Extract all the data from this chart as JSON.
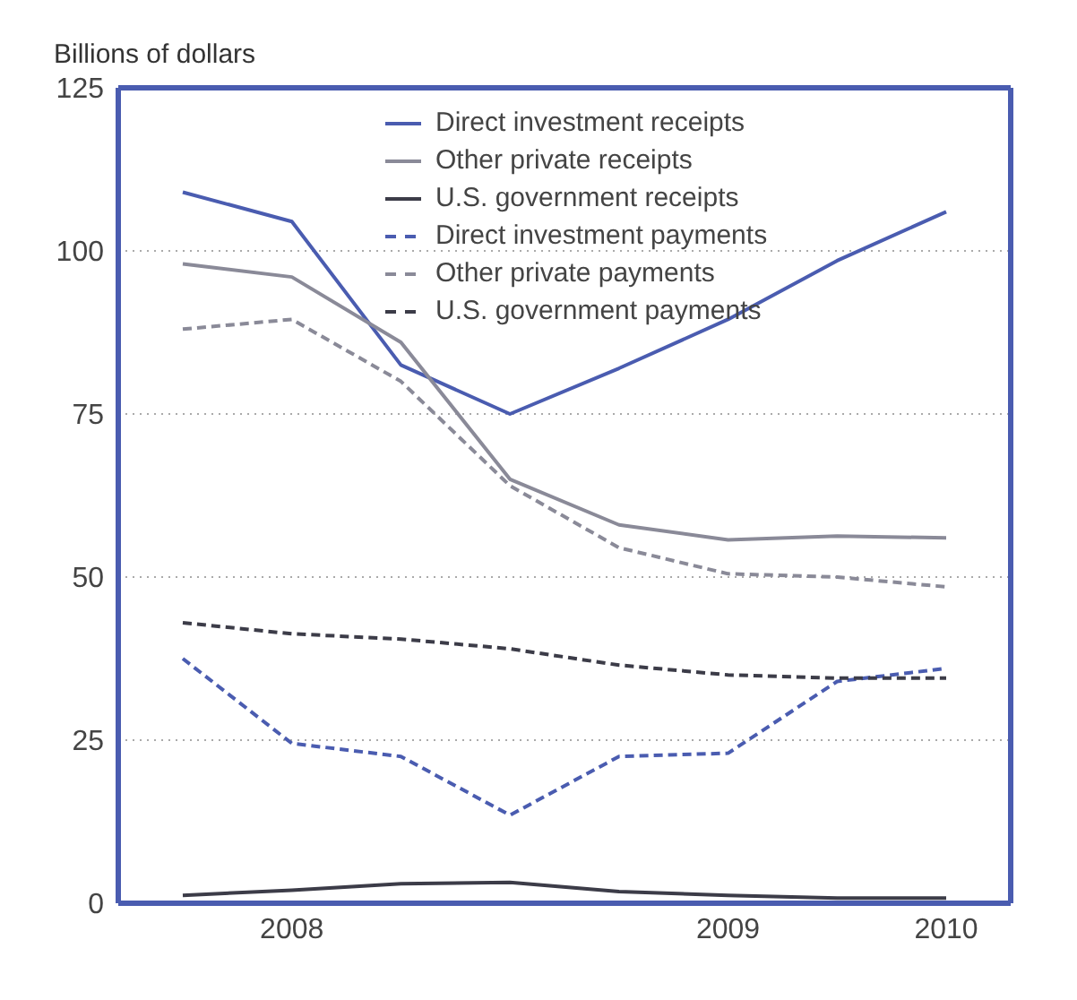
{
  "chart_data": {
    "type": "line",
    "ylabel": "Billions of dollars",
    "categories": [
      null,
      "2008",
      null,
      null,
      null,
      "2009",
      null,
      "2010"
    ],
    "series": [
      {
        "name": "Direct investment receipts",
        "color": "#4a5cb0",
        "line_style": "solid",
        "values": [
          109,
          104.5,
          82.5,
          75,
          82,
          89.5,
          98.5,
          106
        ]
      },
      {
        "name": "Other private receipts",
        "color": "#8a8a98",
        "line_style": "solid",
        "values": [
          98,
          96,
          86,
          65,
          58,
          55.7,
          56.3,
          56
        ]
      },
      {
        "name": "U.S. government receipts",
        "color": "#3c3c48",
        "line_style": "solid",
        "values": [
          1.2,
          2,
          3,
          3.2,
          1.8,
          1.2,
          0.8,
          0.8
        ]
      },
      {
        "name": "Direct investment payments",
        "color": "#4a5cb0",
        "line_style": "dashed",
        "values": [
          37.5,
          24.5,
          22.5,
          13.5,
          22.5,
          23,
          34,
          36
        ]
      },
      {
        "name": "Other private payments",
        "color": "#8a8a98",
        "line_style": "dashed",
        "values": [
          88,
          89.5,
          80,
          64,
          54.5,
          50.5,
          50,
          48.5
        ]
      },
      {
        "name": "U.S. government payments",
        "color": "#3c3c48",
        "line_style": "dashed",
        "values": [
          43,
          41.3,
          40.5,
          39,
          36.5,
          35,
          34.5,
          34.5
        ]
      }
    ],
    "ylim": [
      0,
      125
    ],
    "yticks": [
      0,
      25,
      50,
      75,
      100,
      125
    ],
    "grid": "y",
    "legend": "top",
    "marker": "none"
  }
}
